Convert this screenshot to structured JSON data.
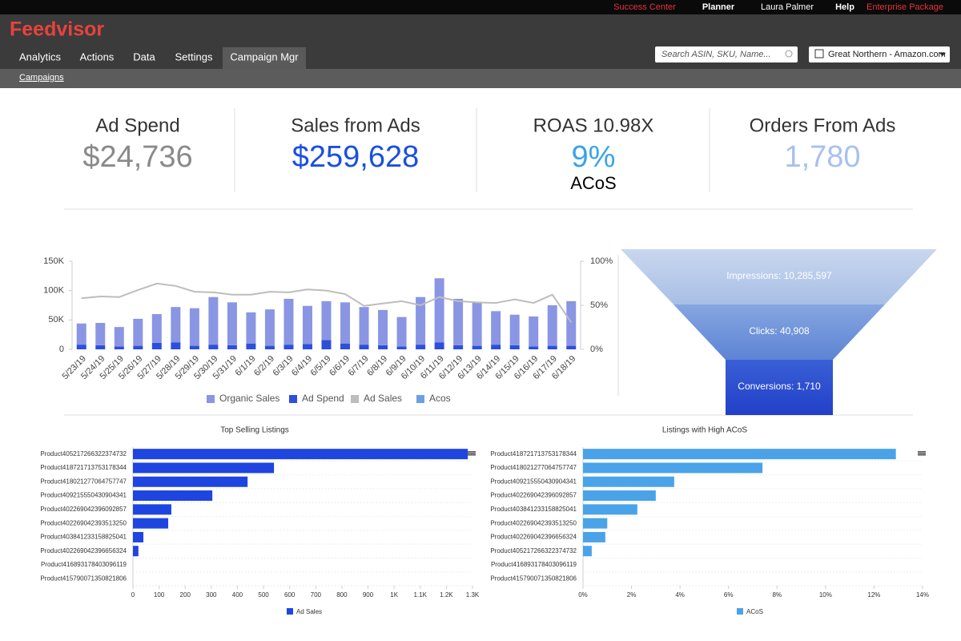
{
  "header": {
    "links": [
      "Success Center",
      "Planner",
      "Laura Palmer",
      "Help",
      "Enterprise Package"
    ],
    "logo": "Feedvisor",
    "nav": [
      "Analytics",
      "Actions",
      "Data",
      "Settings",
      "Campaign Mgr"
    ],
    "search_placeholder": "Search ASIN, SKU, Name...",
    "store": "Great Northern - Amazon.com",
    "subnav": "Campaigns"
  },
  "kpis": [
    {
      "label": "Ad Spend",
      "value": "$24,736"
    },
    {
      "label": "Sales from Ads",
      "value": "$259,628"
    },
    {
      "label": "ROAS 10.98X",
      "value": "9%",
      "sub": "ACoS"
    },
    {
      "label": "Orders From Ads",
      "value": "1,780"
    }
  ],
  "funnel": {
    "stages": [
      "Impressions: 10,285,597",
      "Clicks: 40,908",
      "Conversions: 1,710"
    ]
  },
  "chart_data": [
    {
      "type": "combo",
      "categories": [
        "5/23/19",
        "5/24/19",
        "5/25/19",
        "5/26/19",
        "5/27/19",
        "5/28/19",
        "5/29/19",
        "5/30/19",
        "5/31/19",
        "6/1/19",
        "6/2/19",
        "6/3/19",
        "6/4/19",
        "6/5/19",
        "6/6/19",
        "6/7/19",
        "6/8/19",
        "6/9/19",
        "6/10/19",
        "6/11/19",
        "6/12/19",
        "6/13/19",
        "6/14/19",
        "6/15/19",
        "6/16/19",
        "6/17/19",
        "6/18/19"
      ],
      "series": [
        {
          "name": "Organic Sales",
          "color": "#8a96e3",
          "kind": "bar",
          "values": [
            36000,
            38000,
            33000,
            46000,
            49000,
            60000,
            64000,
            81000,
            73000,
            53000,
            62000,
            78000,
            65000,
            66000,
            70000,
            64000,
            60000,
            50000,
            81000,
            109000,
            79000,
            74000,
            57000,
            52000,
            51000,
            69000,
            76000
          ]
        },
        {
          "name": "Ad Spend",
          "color": "#2e4fdc",
          "kind": "bar",
          "values": [
            8000,
            7000,
            5000,
            6000,
            11000,
            12000,
            6000,
            8000,
            7000,
            10000,
            6000,
            8000,
            9000,
            16000,
            10000,
            8000,
            7000,
            5000,
            8000,
            12000,
            7000,
            6000,
            8000,
            7000,
            5000,
            6000,
            6000
          ]
        },
        {
          "name": "Ad Sales",
          "color": "#bdbdbd",
          "kind": "line",
          "values": [
            87000,
            90000,
            89000,
            101000,
            112000,
            108000,
            98000,
            97000,
            93000,
            93000,
            98000,
            97000,
            102000,
            100000,
            94000,
            74000,
            78000,
            82000,
            75000,
            89000,
            82000,
            80000,
            79000,
            85000,
            79000,
            93000,
            46000
          ]
        },
        {
          "name": "Acos",
          "color": "#6f9fe3",
          "kind": "line",
          "axis": "y2",
          "values": [
            null,
            null,
            null,
            null,
            null,
            null,
            null,
            null,
            null,
            null,
            null,
            null,
            null,
            null,
            null,
            null,
            null,
            null,
            null,
            null,
            null,
            null,
            null,
            null,
            null,
            null,
            null
          ]
        }
      ],
      "ylim": [
        0,
        150000
      ],
      "yticks": [
        0,
        {
          "value": 50000,
          "label": "50K"
        },
        {
          "value": 100000,
          "label": "100K"
        },
        {
          "value": 150000,
          "label": "150K"
        }
      ],
      "y2lim": [
        0,
        100
      ],
      "y2ticks": [
        {
          "value": 0,
          "label": "0%"
        },
        {
          "value": 50,
          "label": "50%"
        },
        {
          "value": 100,
          "label": "100%"
        }
      ],
      "legend": "bottom"
    },
    {
      "type": "hbar",
      "title": "Top Selling Listings",
      "categories": [
        "Product405217266322374732",
        "Product418721713753178344",
        "Product418021277064757747",
        "Product409215550430904341",
        "Product402269042396092857",
        "Product402269042393513250",
        "Product403841233158825041",
        "Product402269042396656324",
        "Product416893178403096119",
        "Product415790071350821806"
      ],
      "series": [
        {
          "name": "Ad Sales",
          "color": "#1f45e0",
          "values": [
            1282,
            540,
            439,
            304,
            147,
            135,
            40,
            21,
            0,
            0
          ]
        }
      ],
      "xlim": [
        0,
        1300
      ],
      "xticks": [
        0,
        100,
        200,
        300,
        400,
        500,
        600,
        700,
        800,
        900,
        {
          "value": 1000,
          "label": "1K"
        },
        {
          "value": 1100,
          "label": "1.1K"
        },
        {
          "value": 1200,
          "label": "1.2K"
        },
        {
          "value": 1300,
          "label": "1.3K"
        }
      ],
      "legend": "bottom"
    },
    {
      "type": "hbar",
      "title": "Listings with High ACoS",
      "categories": [
        "Product418721713753178344",
        "Product418021277064757747",
        "Product409215550430904341",
        "Product402269042396092857",
        "Product403841233158825041",
        "Product402269042393513250",
        "Product402269042396656324",
        "Product405217266322374732",
        "Product416893178403096119",
        "Product415790071350821806"
      ],
      "series": [
        {
          "name": "ACoS",
          "color": "#4aa3e8",
          "values": [
            12.9,
            7.4,
            3.76,
            3.0,
            2.24,
            1.0,
            0.92,
            0.36,
            0,
            0
          ]
        }
      ],
      "xlim": [
        0,
        14
      ],
      "xticks": [
        {
          "value": 0,
          "label": "0%"
        },
        {
          "value": 2,
          "label": "2%"
        },
        {
          "value": 4,
          "label": "4%"
        },
        {
          "value": 6,
          "label": "6%"
        },
        {
          "value": 8,
          "label": "8%"
        },
        {
          "value": 10,
          "label": "10%"
        },
        {
          "value": 12,
          "label": "12%"
        },
        {
          "value": 14,
          "label": "14%"
        }
      ],
      "legend": "bottom"
    }
  ]
}
